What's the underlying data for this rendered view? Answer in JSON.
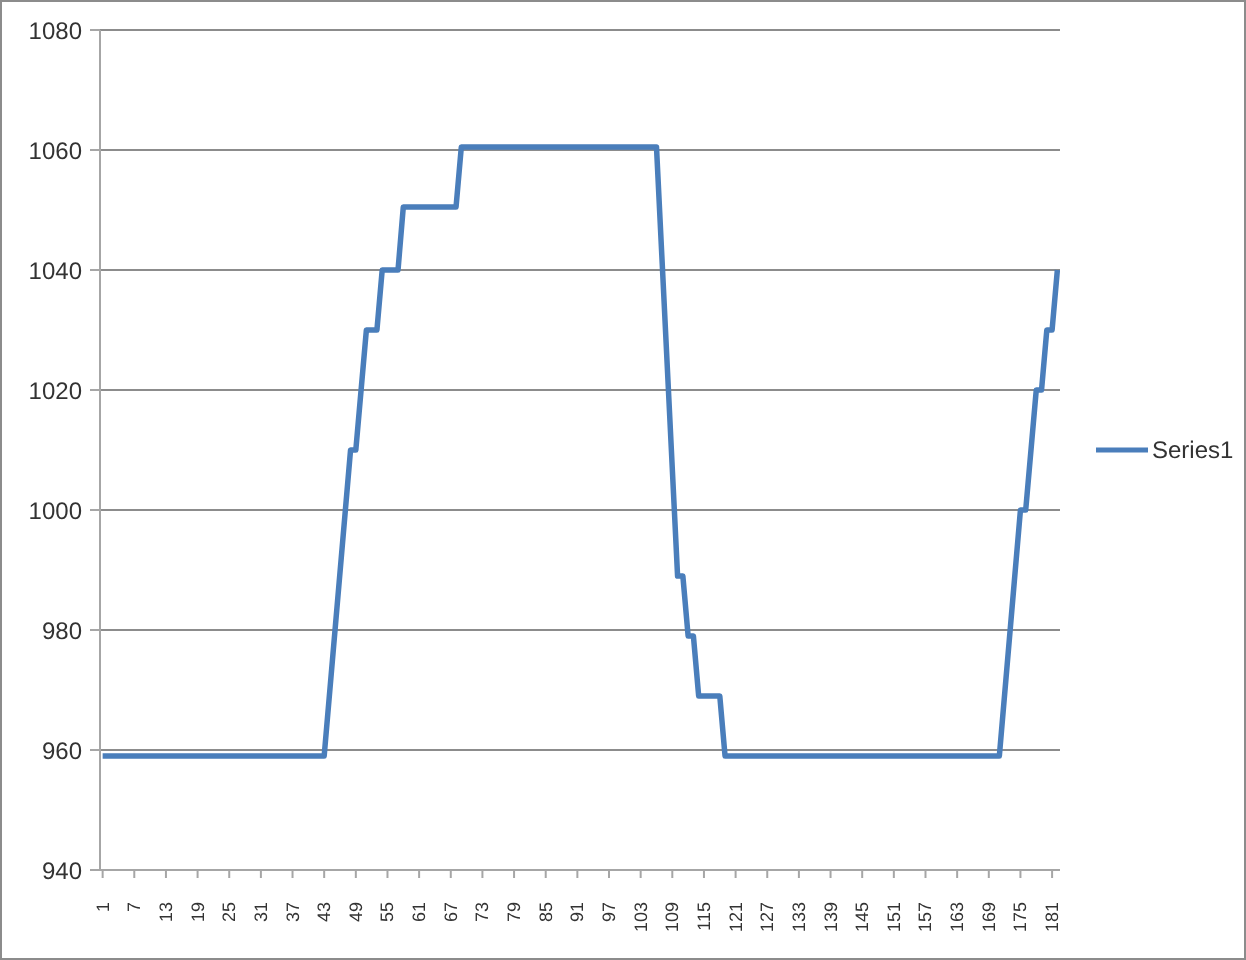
{
  "chart_data": {
    "type": "line",
    "x": [
      1,
      43,
      48,
      49,
      51,
      53,
      54,
      57,
      58,
      68,
      69,
      106,
      110,
      111,
      112,
      113,
      114,
      118,
      119,
      171,
      175,
      176,
      178,
      179,
      180,
      181,
      182
    ],
    "xlim": [
      0.5,
      182.5
    ],
    "xticks": [
      1,
      7,
      13,
      19,
      25,
      31,
      37,
      43,
      49,
      55,
      61,
      67,
      73,
      79,
      85,
      91,
      97,
      103,
      109,
      115,
      121,
      127,
      133,
      139,
      145,
      151,
      157,
      163,
      169,
      175,
      181
    ],
    "ylim": [
      940,
      1080
    ],
    "yticks": [
      940,
      960,
      980,
      1000,
      1020,
      1040,
      1060,
      1080
    ],
    "series": [
      {
        "name": "Series1",
        "color": "#4a7ebb",
        "values": [
          959,
          959,
          1010,
          1010,
          1030,
          1030,
          1040,
          1040,
          1050.5,
          1050.5,
          1060.5,
          1060.5,
          989,
          989,
          979,
          979,
          969,
          969,
          959,
          959,
          1000,
          1000,
          1020,
          1020,
          1030,
          1030,
          1040
        ]
      }
    ],
    "grid": "y",
    "legend": "right"
  }
}
